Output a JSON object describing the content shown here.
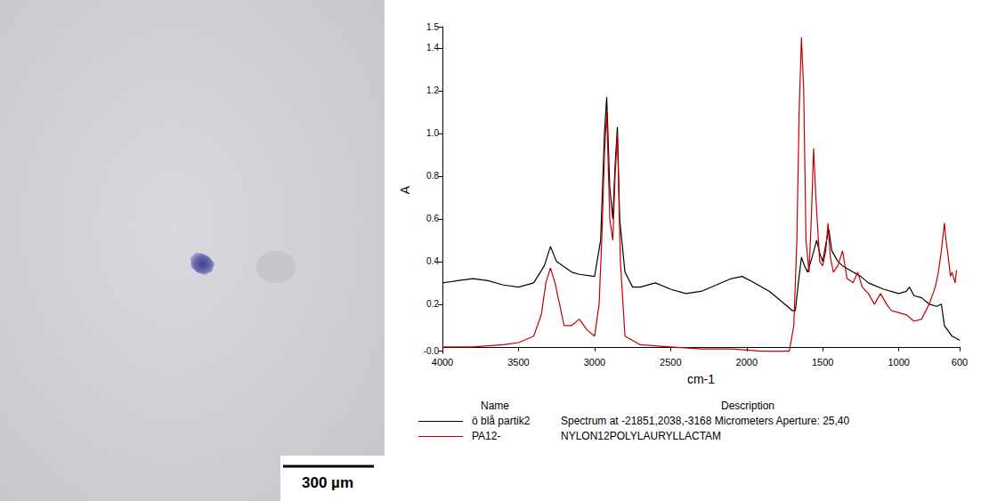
{
  "photo": {
    "scale_bar": "300 µm"
  },
  "chart_data": {
    "type": "line",
    "x_label": "cm-1",
    "y_label": "A",
    "xlim": [
      4000,
      600
    ],
    "xticks": [
      4000,
      3500,
      3000,
      2500,
      2000,
      1500,
      1000,
      600
    ],
    "ylim": [
      -0.03,
      1.5
    ],
    "yticks": [
      {
        "value": -0.02,
        "label": "-0.0"
      },
      {
        "value": 0,
        "label": "-0.0"
      },
      0.2,
      0.4,
      0.6,
      0.8,
      {
        "value": 1,
        "label": "1.0"
      },
      1.2,
      1.4,
      1.5
    ],
    "grid": false,
    "legend_header": [
      "Name",
      "Description"
    ],
    "series": [
      {
        "name": "ö blå partik2",
        "description": "Spectrum at -21851,2038,-3168 Micrometers Aperture: 25,40",
        "color": "#000000",
        "x": [
          4000,
          3900,
          3800,
          3700,
          3600,
          3500,
          3400,
          3330,
          3290,
          3250,
          3150,
          3100,
          3000,
          2960,
          2935,
          2920,
          2900,
          2880,
          2865,
          2850,
          2835,
          2800,
          2750,
          2700,
          2600,
          2500,
          2400,
          2300,
          2200,
          2100,
          2030,
          1950,
          1850,
          1750,
          1700,
          1680,
          1660,
          1640,
          1620,
          1600,
          1570,
          1540,
          1520,
          1500,
          1480,
          1460,
          1440,
          1400,
          1370,
          1300,
          1250,
          1200,
          1100,
          1000,
          950,
          930,
          900,
          850,
          800,
          750,
          720,
          700,
          680,
          650,
          620,
          600
        ],
        "values": [
          0.3,
          0.31,
          0.32,
          0.31,
          0.29,
          0.28,
          0.3,
          0.38,
          0.47,
          0.4,
          0.35,
          0.34,
          0.33,
          0.5,
          1.0,
          1.17,
          0.75,
          0.6,
          0.85,
          1.03,
          0.6,
          0.35,
          0.28,
          0.28,
          0.3,
          0.27,
          0.25,
          0.26,
          0.29,
          0.32,
          0.33,
          0.3,
          0.26,
          0.2,
          0.17,
          0.17,
          0.3,
          0.42,
          0.38,
          0.35,
          0.42,
          0.5,
          0.44,
          0.4,
          0.48,
          0.55,
          0.45,
          0.4,
          0.38,
          0.35,
          0.33,
          0.3,
          0.27,
          0.25,
          0.26,
          0.28,
          0.24,
          0.23,
          0.2,
          0.19,
          0.2,
          0.1,
          0.08,
          0.05,
          0.04,
          0.03
        ]
      },
      {
        "name": "PA12-",
        "description": "NYLON12POLYLAURYLLACTAM",
        "color": "#c00000",
        "x": [
          4000,
          3800,
          3600,
          3500,
          3400,
          3350,
          3320,
          3290,
          3260,
          3200,
          3150,
          3100,
          3050,
          3000,
          2970,
          2950,
          2935,
          2920,
          2900,
          2880,
          2865,
          2850,
          2830,
          2800,
          2700,
          2500,
          2300,
          2100,
          1900,
          1800,
          1720,
          1690,
          1670,
          1655,
          1640,
          1625,
          1610,
          1590,
          1575,
          1560,
          1545,
          1520,
          1500,
          1480,
          1465,
          1450,
          1430,
          1400,
          1370,
          1340,
          1300,
          1270,
          1240,
          1200,
          1160,
          1120,
          1080,
          1050,
          1000,
          950,
          900,
          850,
          800,
          760,
          740,
          720,
          700,
          690,
          680,
          660,
          650,
          630,
          620
        ],
        "values": [
          0.0,
          0.0,
          0.01,
          0.02,
          0.05,
          0.15,
          0.3,
          0.37,
          0.3,
          0.1,
          0.1,
          0.13,
          0.08,
          0.05,
          0.2,
          0.55,
          0.9,
          1.1,
          0.6,
          0.5,
          0.8,
          1.0,
          0.4,
          0.05,
          0.01,
          0.0,
          -0.01,
          -0.01,
          -0.02,
          -0.02,
          -0.02,
          0.1,
          0.5,
          1.1,
          1.45,
          1.2,
          0.5,
          0.35,
          0.6,
          0.93,
          0.7,
          0.4,
          0.38,
          0.45,
          0.58,
          0.42,
          0.35,
          0.38,
          0.45,
          0.32,
          0.3,
          0.35,
          0.28,
          0.25,
          0.2,
          0.25,
          0.2,
          0.17,
          0.16,
          0.15,
          0.12,
          0.13,
          0.2,
          0.28,
          0.35,
          0.45,
          0.58,
          0.5,
          0.45,
          0.33,
          0.35,
          0.3,
          0.36
        ]
      }
    ]
  }
}
